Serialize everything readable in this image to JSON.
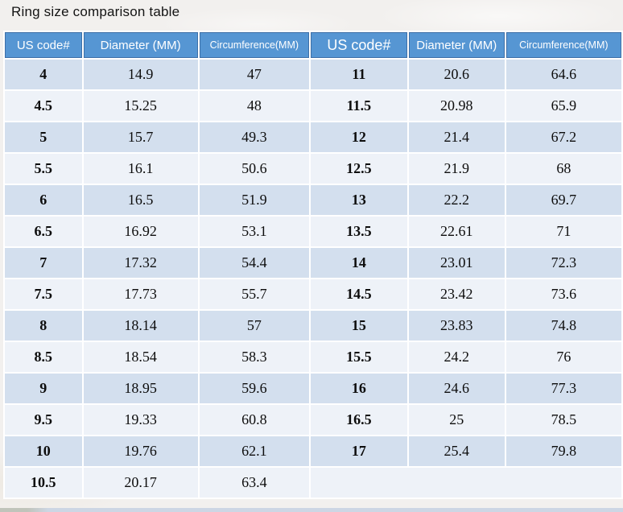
{
  "title": "Ring size comparison table",
  "table": {
    "headers": [
      "US code#",
      "Diameter (MM)",
      "Circumference(MM)",
      "US code#",
      "Diameter (MM)",
      "Circumference(MM)"
    ],
    "rows": [
      [
        "4",
        "14.9",
        "47",
        "11",
        "20.6",
        "64.6"
      ],
      [
        "4.5",
        "15.25",
        "48",
        "11.5",
        "20.98",
        "65.9"
      ],
      [
        "5",
        "15.7",
        "49.3",
        "12",
        "21.4",
        "67.2"
      ],
      [
        "5.5",
        "16.1",
        "50.6",
        "12.5",
        "21.9",
        "68"
      ],
      [
        "6",
        "16.5",
        "51.9",
        "13",
        "22.2",
        "69.7"
      ],
      [
        "6.5",
        "16.92",
        "53.1",
        "13.5",
        "22.61",
        "71"
      ],
      [
        "7",
        "17.32",
        "54.4",
        "14",
        "23.01",
        "72.3"
      ],
      [
        "7.5",
        "17.73",
        "55.7",
        "14.5",
        "23.42",
        "73.6"
      ],
      [
        "8",
        "18.14",
        "57",
        "15",
        "23.83",
        "74.8"
      ],
      [
        "8.5",
        "18.54",
        "58.3",
        "15.5",
        "24.2",
        "76"
      ],
      [
        "9",
        "18.95",
        "59.6",
        "16",
        "24.6",
        "77.3"
      ],
      [
        "9.5",
        "19.33",
        "60.8",
        "16.5",
        "25",
        "78.5"
      ],
      [
        "10",
        "19.76",
        "62.1",
        "17",
        "25.4",
        "79.8"
      ],
      [
        "10.5",
        "20.17",
        "63.4",
        "",
        "",
        ""
      ]
    ]
  },
  "colors": {
    "page_bg": "#f2f0ee",
    "header_bg": "#5696d3",
    "header_border": "#3d6fa7",
    "row_blue": "#d3dfee",
    "row_light": "#eef2f8",
    "grid_gap": "#ffffff",
    "header_text": "#ffffff",
    "body_text": "#0d0d0d"
  }
}
